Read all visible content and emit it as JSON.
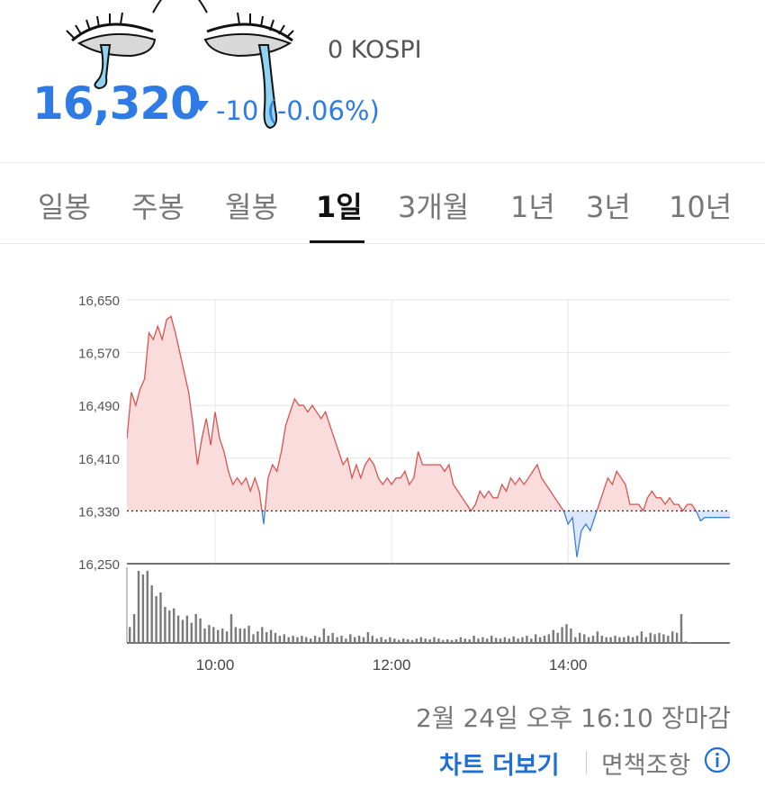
{
  "header": {
    "index_name": "0 KOSPI",
    "price": "16,320",
    "change": "-10 (-0.06%)",
    "direction_icon": "triangle-down-icon",
    "decoration": "crying-eyes-sticker"
  },
  "tabs": [
    {
      "label": "일봉",
      "active": false
    },
    {
      "label": "주봉",
      "active": false
    },
    {
      "label": "월봉",
      "active": false
    },
    {
      "label": "1일",
      "active": true
    },
    {
      "label": "3개월",
      "active": false
    },
    {
      "label": "1년",
      "active": false
    },
    {
      "label": "3년",
      "active": false
    },
    {
      "label": "10년",
      "active": false
    }
  ],
  "footer": {
    "timestamp": "2월 24일 오후 16:10 장마감",
    "more_chart": "차트 더보기",
    "disclaimer": "면책조항",
    "info_icon": "info-circle-icon"
  },
  "colors": {
    "accent": "#2e7be6",
    "up": "#d9534f",
    "up_fill": "#fbdcdc",
    "down": "#3f7fd6",
    "down_fill": "#dbe8fb"
  },
  "chart_data": {
    "type": "line",
    "baseline": 16330,
    "ylim": [
      16250,
      16650
    ],
    "yticks": [
      "16,650",
      "16,570",
      "16,490",
      "16,410",
      "16,330",
      "16,250"
    ],
    "ytick_values": [
      16650,
      16570,
      16490,
      16410,
      16330,
      16250
    ],
    "xlim": [
      "09:00",
      "15:50"
    ],
    "xticks": [
      "10:00",
      "12:00",
      "14:00"
    ],
    "grid": true,
    "series": [
      {
        "points": [
          [
            "09:00",
            16440
          ],
          [
            "09:03",
            16510
          ],
          [
            "09:06",
            16490
          ],
          [
            "09:09",
            16515
          ],
          [
            "09:12",
            16530
          ],
          [
            "09:15",
            16600
          ],
          [
            "09:18",
            16590
          ],
          [
            "09:21",
            16610
          ],
          [
            "09:24",
            16590
          ],
          [
            "09:27",
            16620
          ],
          [
            "09:30",
            16625
          ],
          [
            "09:33",
            16600
          ],
          [
            "09:36",
            16570
          ],
          [
            "09:39",
            16540
          ],
          [
            "09:42",
            16510
          ],
          [
            "09:45",
            16460
          ],
          [
            "09:48",
            16400
          ],
          [
            "09:51",
            16440
          ],
          [
            "09:54",
            16470
          ],
          [
            "09:57",
            16430
          ],
          [
            "10:00",
            16480
          ],
          [
            "10:03",
            16440
          ],
          [
            "10:06",
            16420
          ],
          [
            "10:09",
            16390
          ],
          [
            "10:12",
            16370
          ],
          [
            "10:15",
            16380
          ],
          [
            "10:18",
            16370
          ],
          [
            "10:21",
            16380
          ],
          [
            "10:24",
            16360
          ],
          [
            "10:27",
            16380
          ],
          [
            "10:30",
            16360
          ],
          [
            "10:33",
            16310
          ],
          [
            "10:36",
            16380
          ],
          [
            "10:39",
            16400
          ],
          [
            "10:42",
            16390
          ],
          [
            "10:45",
            16420
          ],
          [
            "10:48",
            16460
          ],
          [
            "10:51",
            16480
          ],
          [
            "10:54",
            16500
          ],
          [
            "10:57",
            16490
          ],
          [
            "11:00",
            16490
          ],
          [
            "11:03",
            16480
          ],
          [
            "11:06",
            16490
          ],
          [
            "11:09",
            16480
          ],
          [
            "11:12",
            16470
          ],
          [
            "11:15",
            16480
          ],
          [
            "11:18",
            16460
          ],
          [
            "11:21",
            16440
          ],
          [
            "11:24",
            16420
          ],
          [
            "11:27",
            16400
          ],
          [
            "11:30",
            16410
          ],
          [
            "11:33",
            16380
          ],
          [
            "11:36",
            16400
          ],
          [
            "11:39",
            16380
          ],
          [
            "11:42",
            16400
          ],
          [
            "11:45",
            16410
          ],
          [
            "11:48",
            16400
          ],
          [
            "11:51",
            16380
          ],
          [
            "11:54",
            16370
          ],
          [
            "11:57",
            16380
          ],
          [
            "12:00",
            16370
          ],
          [
            "12:03",
            16380
          ],
          [
            "12:06",
            16380
          ],
          [
            "12:09",
            16390
          ],
          [
            "12:12",
            16370
          ],
          [
            "12:15",
            16380
          ],
          [
            "12:18",
            16420
          ],
          [
            "12:21",
            16400
          ],
          [
            "12:24",
            16400
          ],
          [
            "12:27",
            16400
          ],
          [
            "12:30",
            16400
          ],
          [
            "12:33",
            16400
          ],
          [
            "12:36",
            16390
          ],
          [
            "12:39",
            16400
          ],
          [
            "12:42",
            16370
          ],
          [
            "12:45",
            16360
          ],
          [
            "12:48",
            16350
          ],
          [
            "12:51",
            16340
          ],
          [
            "12:54",
            16330
          ],
          [
            "12:57",
            16340
          ],
          [
            "13:00",
            16360
          ],
          [
            "13:03",
            16350
          ],
          [
            "13:06",
            16360
          ],
          [
            "13:09",
            16350
          ],
          [
            "13:12",
            16350
          ],
          [
            "13:15",
            16370
          ],
          [
            "13:18",
            16360
          ],
          [
            "13:21",
            16380
          ],
          [
            "13:24",
            16370
          ],
          [
            "13:27",
            16380
          ],
          [
            "13:30",
            16370
          ],
          [
            "13:33",
            16380
          ],
          [
            "13:36",
            16390
          ],
          [
            "13:39",
            16400
          ],
          [
            "13:42",
            16380
          ],
          [
            "13:45",
            16370
          ],
          [
            "13:48",
            16360
          ],
          [
            "13:51",
            16350
          ],
          [
            "13:54",
            16340
          ],
          [
            "13:57",
            16330
          ],
          [
            "14:00",
            16310
          ],
          [
            "14:03",
            16320
          ],
          [
            "14:06",
            16260
          ],
          [
            "14:09",
            16300
          ],
          [
            "14:12",
            16310
          ],
          [
            "14:15",
            16300
          ],
          [
            "14:18",
            16320
          ],
          [
            "14:21",
            16340
          ],
          [
            "14:24",
            16360
          ],
          [
            "14:27",
            16380
          ],
          [
            "14:30",
            16370
          ],
          [
            "14:33",
            16390
          ],
          [
            "14:36",
            16380
          ],
          [
            "14:39",
            16370
          ],
          [
            "14:42",
            16340
          ],
          [
            "14:45",
            16340
          ],
          [
            "14:48",
            16340
          ],
          [
            "14:51",
            16330
          ],
          [
            "14:54",
            16350
          ],
          [
            "14:57",
            16360
          ],
          [
            "15:00",
            16350
          ],
          [
            "15:03",
            16350
          ],
          [
            "15:06",
            16340
          ],
          [
            "15:09",
            16350
          ],
          [
            "15:12",
            16340
          ],
          [
            "15:15",
            16340
          ],
          [
            "15:18",
            16330
          ],
          [
            "15:21",
            16340
          ],
          [
            "15:24",
            16340
          ],
          [
            "15:27",
            16330
          ],
          [
            "15:30",
            16315
          ],
          [
            "15:33",
            16320
          ],
          [
            "15:36",
            16320
          ],
          [
            "15:39",
            16320
          ],
          [
            "15:42",
            16320
          ],
          [
            "15:50",
            16320
          ]
        ]
      }
    ],
    "volume": [
      [
        "09:00",
        22
      ],
      [
        "09:03",
        40
      ],
      [
        "09:06",
        100
      ],
      [
        "09:09",
        95
      ],
      [
        "09:12",
        100
      ],
      [
        "09:15",
        80
      ],
      [
        "09:18",
        65
      ],
      [
        "09:21",
        70
      ],
      [
        "09:24",
        50
      ],
      [
        "09:27",
        45
      ],
      [
        "09:30",
        48
      ],
      [
        "09:33",
        38
      ],
      [
        "09:36",
        32
      ],
      [
        "09:39",
        38
      ],
      [
        "09:42",
        28
      ],
      [
        "09:45",
        40
      ],
      [
        "09:48",
        34
      ],
      [
        "09:51",
        20
      ],
      [
        "09:54",
        25
      ],
      [
        "09:57",
        22
      ],
      [
        "10:00",
        18
      ],
      [
        "10:03",
        20
      ],
      [
        "10:06",
        16
      ],
      [
        "10:09",
        40
      ],
      [
        "10:12",
        22
      ],
      [
        "10:15",
        20
      ],
      [
        "10:18",
        20
      ],
      [
        "10:21",
        24
      ],
      [
        "10:24",
        12
      ],
      [
        "10:27",
        16
      ],
      [
        "10:30",
        22
      ],
      [
        "10:33",
        15
      ],
      [
        "10:36",
        18
      ],
      [
        "10:39",
        14
      ],
      [
        "10:42",
        10
      ],
      [
        "10:45",
        12
      ],
      [
        "10:48",
        8
      ],
      [
        "10:51",
        10
      ],
      [
        "10:54",
        8
      ],
      [
        "10:57",
        10
      ],
      [
        "11:00",
        8
      ],
      [
        "11:03",
        6
      ],
      [
        "11:06",
        10
      ],
      [
        "11:09",
        8
      ],
      [
        "11:12",
        20
      ],
      [
        "11:15",
        10
      ],
      [
        "11:18",
        14
      ],
      [
        "11:21",
        8
      ],
      [
        "11:24",
        10
      ],
      [
        "11:27",
        6
      ],
      [
        "11:30",
        12
      ],
      [
        "11:33",
        8
      ],
      [
        "11:36",
        10
      ],
      [
        "11:39",
        8
      ],
      [
        "11:42",
        15
      ],
      [
        "11:45",
        10
      ],
      [
        "11:48",
        6
      ],
      [
        "11:51",
        8
      ],
      [
        "11:54",
        5
      ],
      [
        "11:57",
        8
      ],
      [
        "12:00",
        6
      ],
      [
        "12:03",
        4
      ],
      [
        "12:06",
        6
      ],
      [
        "12:09",
        5
      ],
      [
        "12:12",
        4
      ],
      [
        "12:15",
        6
      ],
      [
        "12:18",
        8
      ],
      [
        "12:21",
        6
      ],
      [
        "12:24",
        5
      ],
      [
        "12:27",
        8
      ],
      [
        "12:30",
        6
      ],
      [
        "12:33",
        4
      ],
      [
        "12:36",
        5
      ],
      [
        "12:39",
        4
      ],
      [
        "12:42",
        5
      ],
      [
        "12:45",
        8
      ],
      [
        "12:48",
        6
      ],
      [
        "12:51",
        5
      ],
      [
        "12:54",
        10
      ],
      [
        "12:57",
        6
      ],
      [
        "13:00",
        8
      ],
      [
        "13:03",
        6
      ],
      [
        "13:06",
        10
      ],
      [
        "13:09",
        7
      ],
      [
        "13:12",
        6
      ],
      [
        "13:15",
        8
      ],
      [
        "13:18",
        6
      ],
      [
        "13:21",
        9
      ],
      [
        "13:24",
        6
      ],
      [
        "13:27",
        8
      ],
      [
        "13:30",
        10
      ],
      [
        "13:33",
        6
      ],
      [
        "13:36",
        12
      ],
      [
        "13:39",
        8
      ],
      [
        "13:42",
        10
      ],
      [
        "13:45",
        12
      ],
      [
        "13:48",
        18
      ],
      [
        "13:51",
        14
      ],
      [
        "13:54",
        22
      ],
      [
        "13:57",
        26
      ],
      [
        "14:00",
        20
      ],
      [
        "14:03",
        8
      ],
      [
        "14:06",
        14
      ],
      [
        "14:09",
        12
      ],
      [
        "14:12",
        8
      ],
      [
        "14:15",
        10
      ],
      [
        "14:18",
        16
      ],
      [
        "14:21",
        10
      ],
      [
        "14:24",
        8
      ],
      [
        "14:27",
        8
      ],
      [
        "14:30",
        10
      ],
      [
        "14:33",
        8
      ],
      [
        "14:36",
        8
      ],
      [
        "14:39",
        10
      ],
      [
        "14:42",
        8
      ],
      [
        "14:45",
        10
      ],
      [
        "14:48",
        16
      ],
      [
        "14:51",
        8
      ],
      [
        "14:54",
        14
      ],
      [
        "14:57",
        12
      ],
      [
        "15:00",
        14
      ],
      [
        "15:03",
        12
      ],
      [
        "15:06",
        10
      ],
      [
        "15:09",
        16
      ],
      [
        "15:12",
        14
      ],
      [
        "15:15",
        40
      ],
      [
        "15:18",
        2
      ],
      [
        "15:21",
        1
      ]
    ]
  }
}
